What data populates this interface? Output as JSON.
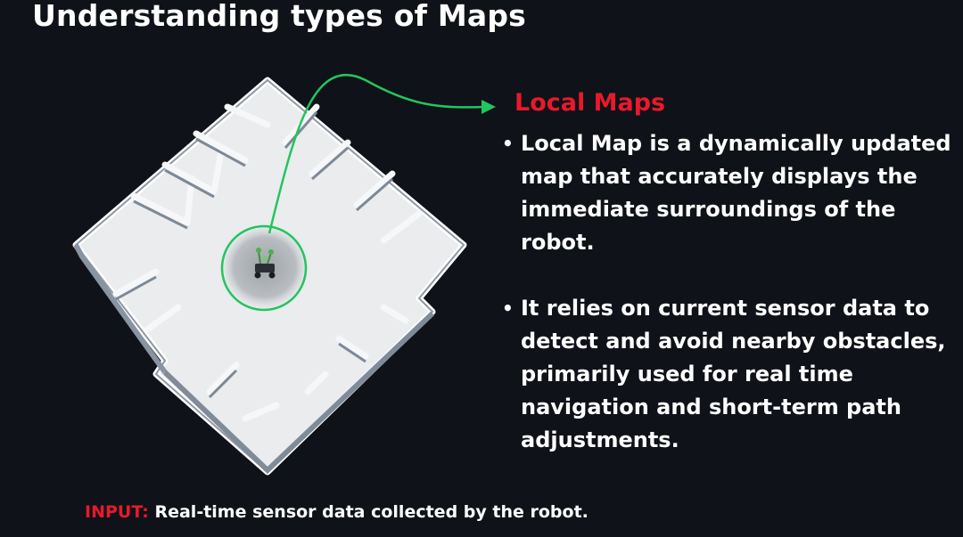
{
  "slide": {
    "title": "Understanding types of Maps",
    "section_title": "Local Maps",
    "bullets": [
      "Local Map is a dynamically updated map that accurately displays the immediate surroundings of the robot.",
      "It relies on current sensor data to detect and avoid nearby obstacles, primarily used for real time navigation and short-term path adjustments."
    ],
    "footer": {
      "label": "INPUT:",
      "text": "Real-time sensor data collected by the robot."
    }
  },
  "colors": {
    "background": "#0f1218",
    "accent_red": "#e8192c",
    "arrow_green": "#22c55e",
    "map_floor": "#e4e6e8",
    "map_walls": "#f4f6f8"
  },
  "illustration": {
    "description_icon": "isometric-floor-plan-with-robot",
    "arrow_icon": "green-curved-arrow"
  }
}
